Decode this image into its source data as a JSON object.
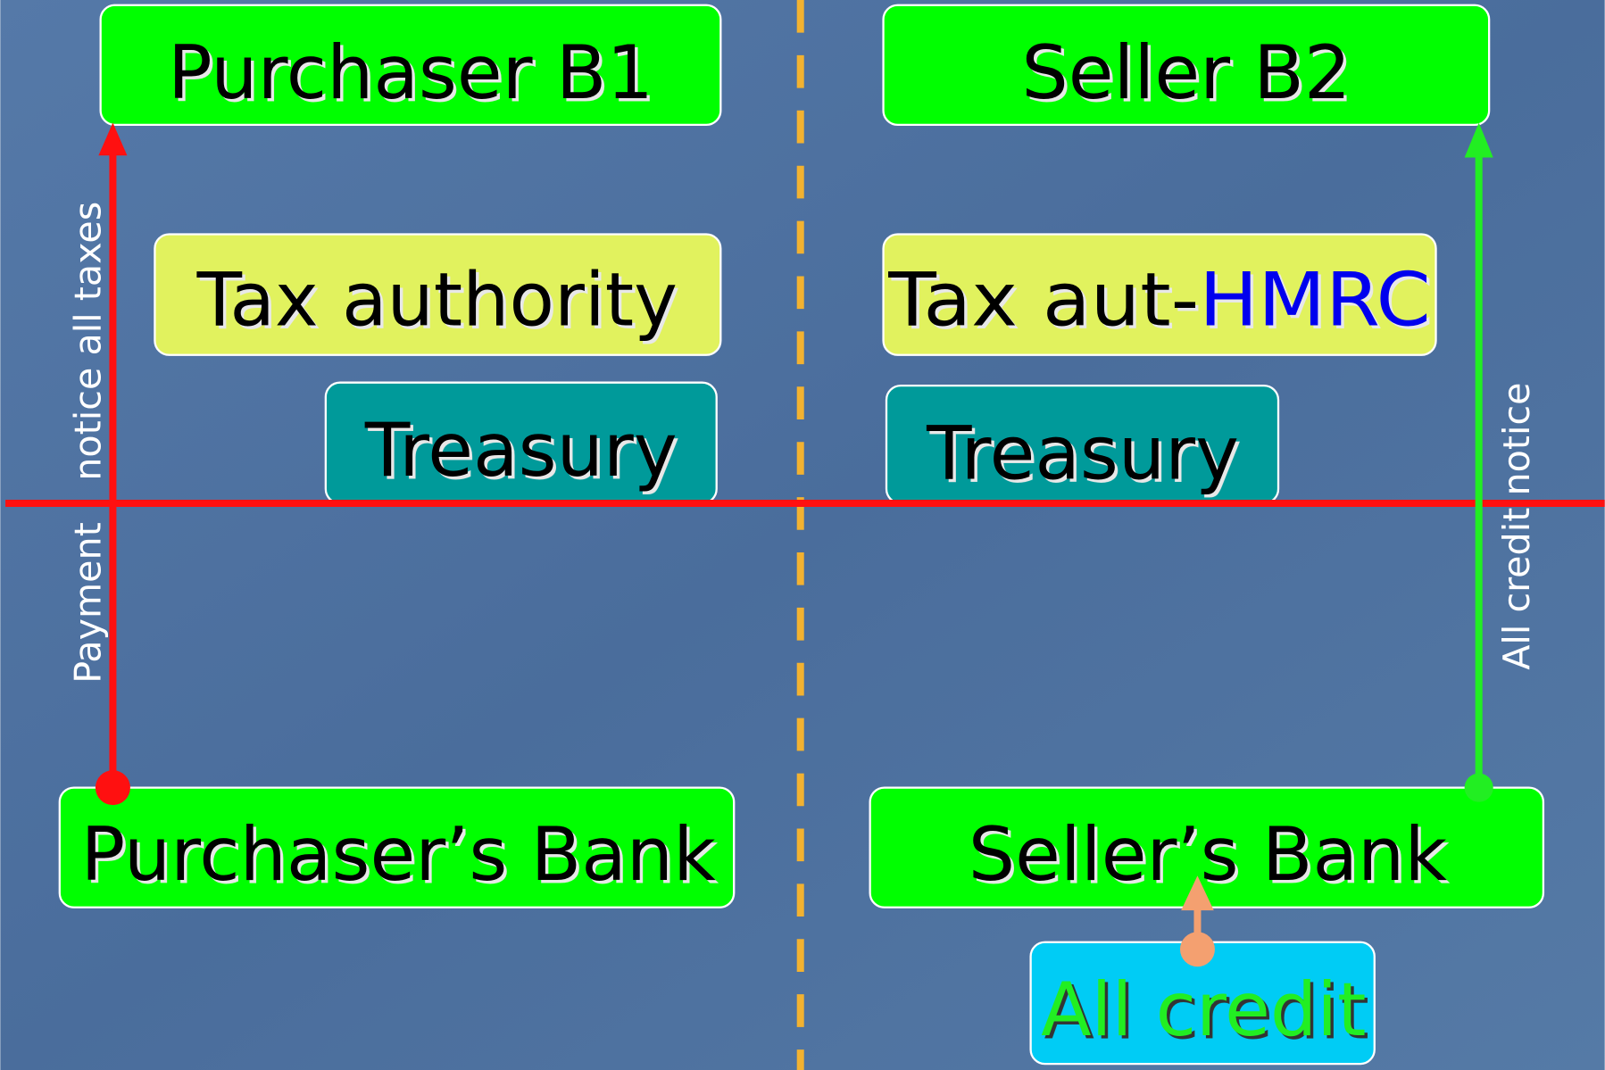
{
  "nodes": [
    {
      "label": "Purchaser B1"
    },
    {
      "label": "Seller B2"
    },
    {
      "label": "Tax authority"
    },
    {
      "label_parts": [
        "Tax aut-",
        "HMRC"
      ]
    },
    {
      "label": "Treasury"
    },
    {
      "label": "Treasury"
    },
    {
      "label": "Purchaser’s Bank"
    },
    {
      "label": "Seller’s Bank"
    },
    {
      "label": "All credit"
    }
  ],
  "edges": [
    {
      "label_parts": [
        "Payment",
        "notice all taxes"
      ]
    },
    {
      "label": "All credit notice"
    }
  ]
}
